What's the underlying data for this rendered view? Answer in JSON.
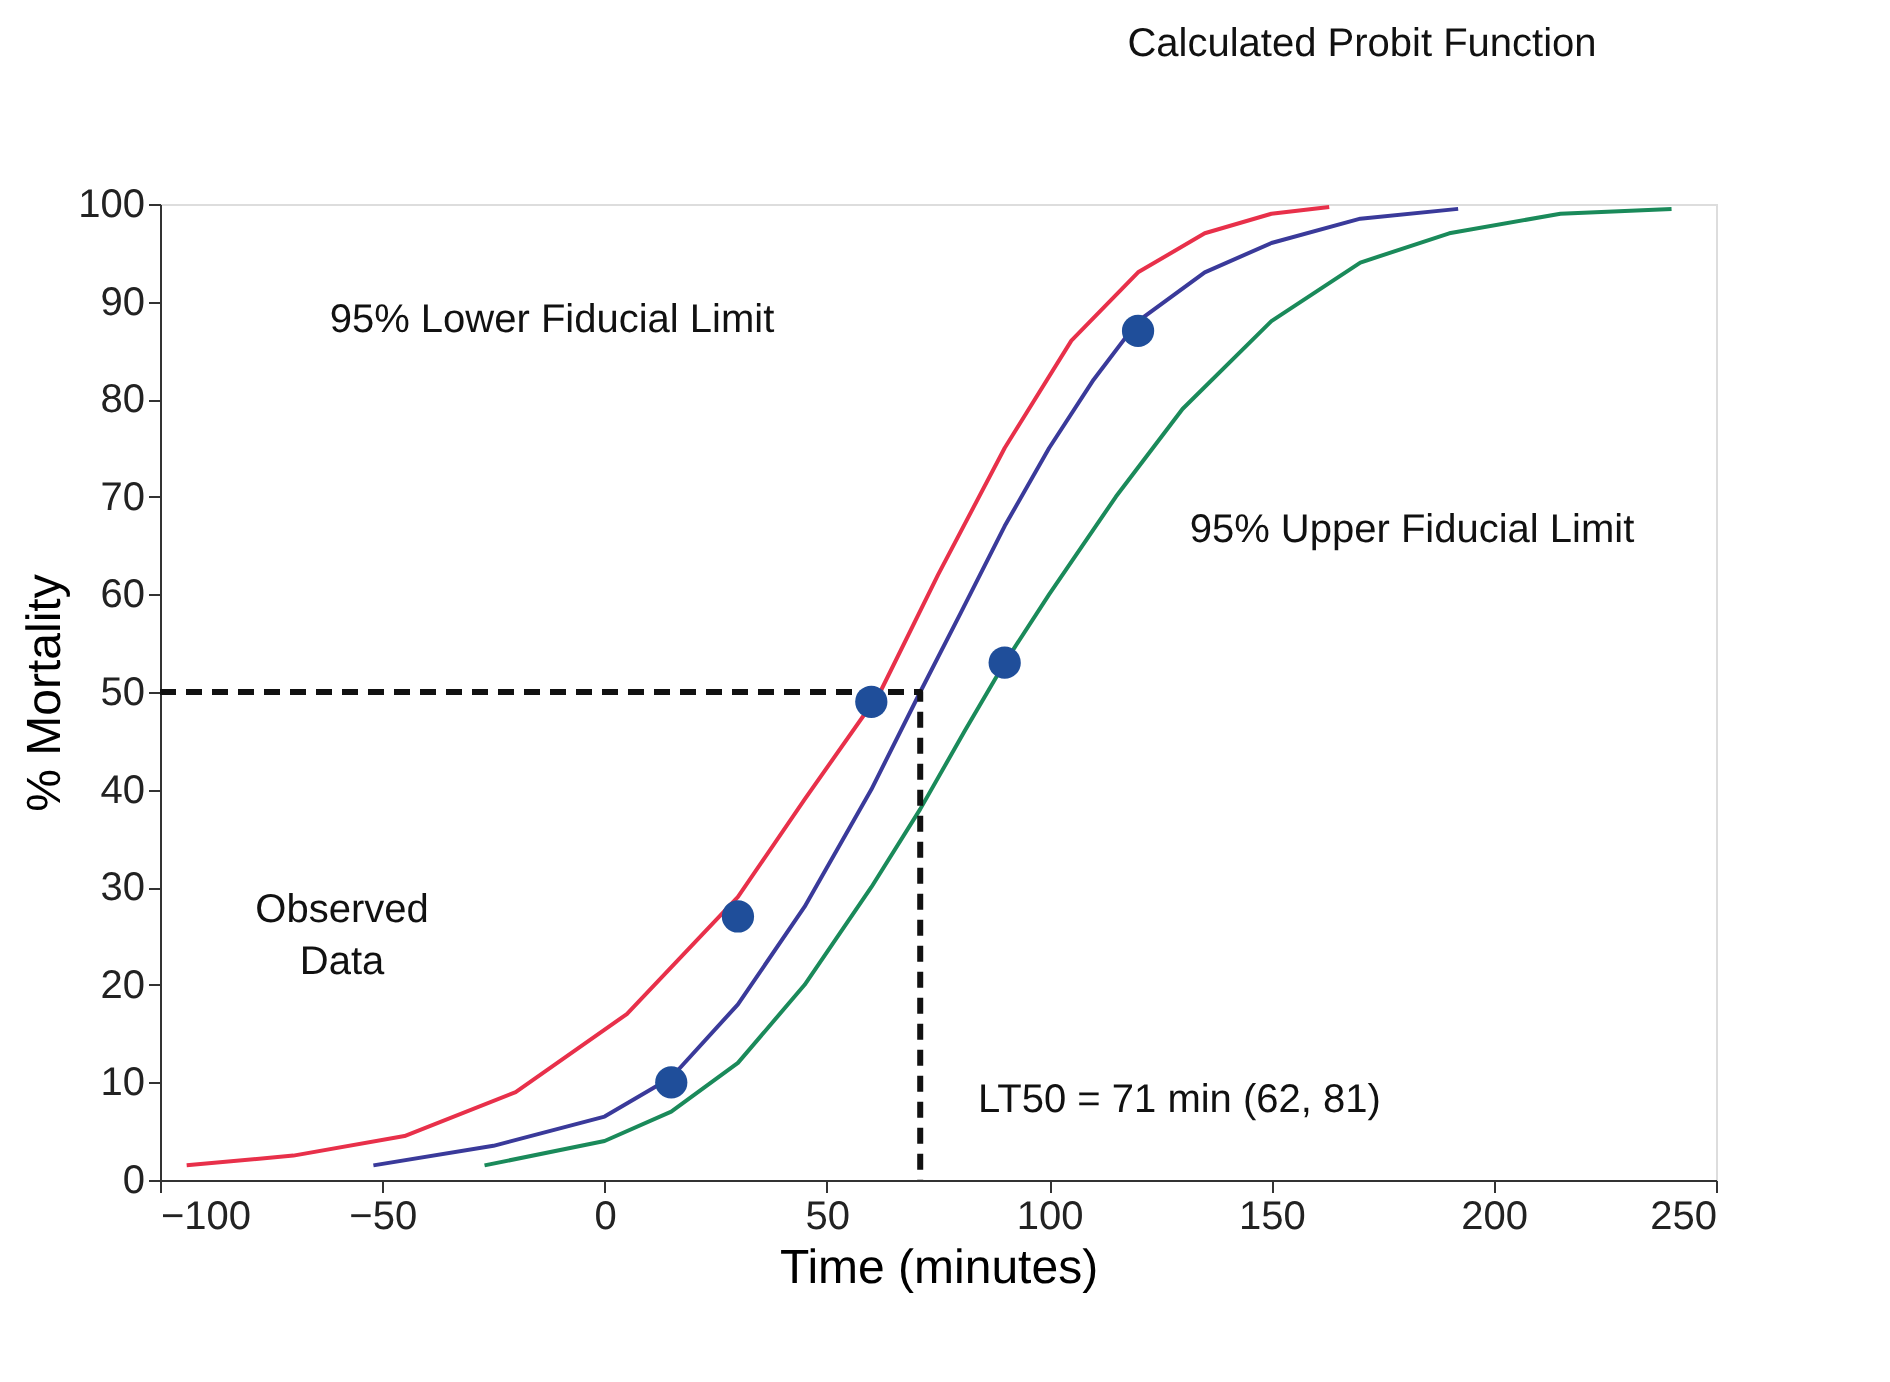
{
  "chart_data": {
    "type": "line",
    "xlabel": "Time (minutes)",
    "ylabel": "% Mortality",
    "xlim": [
      -100,
      250
    ],
    "xticks": [
      -100,
      -50,
      0,
      50,
      100,
      150,
      200,
      250
    ],
    "ylim": [
      0,
      100
    ],
    "yticks": [
      0,
      10,
      20,
      30,
      40,
      50,
      60,
      70,
      80,
      90,
      100
    ],
    "grid": false,
    "series": [
      {
        "color": "#e8304a",
        "line_style": "solid",
        "x": [
          -94,
          -70,
          -45,
          -20,
          5,
          30,
          45,
          62,
          75,
          90,
          105,
          120,
          135,
          150,
          163
        ],
        "values": [
          1.5,
          2.5,
          4.5,
          9,
          17,
          29,
          39,
          50,
          62,
          75,
          86,
          93,
          97,
          99,
          99.7
        ]
      },
      {
        "color": "#3a3a9a",
        "line_style": "solid",
        "x": [
          -52,
          -25,
          0,
          15,
          30,
          45,
          60,
          71,
          80,
          90,
          100,
          110,
          120,
          135,
          150,
          170,
          192
        ],
        "values": [
          1.5,
          3.5,
          6.5,
          10.5,
          18,
          28,
          40,
          50,
          58,
          67,
          75,
          82,
          88,
          93,
          96,
          98.5,
          99.5
        ]
      },
      {
        "color": "#1a8a5a",
        "line_style": "solid",
        "x": [
          -27,
          0,
          15,
          30,
          45,
          60,
          71,
          81,
          90,
          100,
          115,
          130,
          150,
          170,
          190,
          215,
          240
        ],
        "values": [
          1.5,
          4,
          7,
          12,
          20,
          30,
          38,
          46,
          53,
          60,
          70,
          79,
          88,
          94,
          97,
          99,
          99.5
        ]
      },
      {
        "color": "#111111",
        "line_style": "dashed",
        "x": [
          -100,
          71,
          71
        ],
        "values": [
          50,
          50,
          0
        ]
      },
      {
        "type": "scatter",
        "color": "#1f4e9a",
        "marker": "circle",
        "x": [
          15,
          30,
          60,
          90,
          120
        ],
        "values": [
          10,
          27,
          49,
          53,
          87
        ]
      }
    ],
    "annotations": [
      "Calculated Probit Function",
      "95% Lower Fiducial Limit",
      "95% Upper Fiducial Limit",
      "Observed\nData",
      "LT50 = 71 min (62, 81)"
    ]
  }
}
